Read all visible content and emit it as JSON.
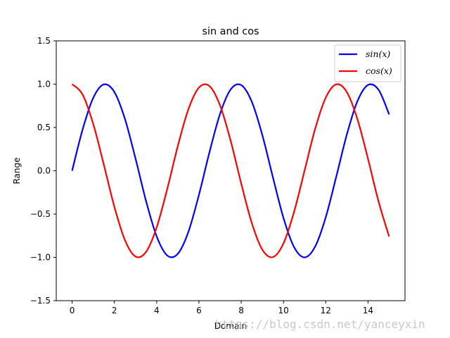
{
  "chart_data": {
    "type": "line",
    "title": "sin and cos",
    "xlabel": "Domain",
    "ylabel": "Range",
    "xlim": [
      -0.75,
      15.75
    ],
    "ylim": [
      -1.5,
      1.5
    ],
    "xticks": [
      0,
      2,
      4,
      6,
      8,
      10,
      12,
      14
    ],
    "yticks": [
      -1.5,
      -1.0,
      -0.5,
      0.0,
      0.5,
      1.0,
      1.5
    ],
    "xtick_labels": [
      "0",
      "2",
      "4",
      "6",
      "8",
      "10",
      "12",
      "14"
    ],
    "ytick_labels": [
      "−1.5",
      "−1.0",
      "−0.5",
      "0.0",
      "0.5",
      "1.0",
      "1.5"
    ],
    "grid": false,
    "legend_position": "top-right",
    "series": [
      {
        "name": "sin(x)",
        "color": "#0000ff",
        "x": [
          0,
          0.5,
          1,
          1.5,
          2,
          2.5,
          3,
          3.5,
          4,
          4.5,
          5,
          5.5,
          6,
          6.5,
          7,
          7.5,
          8,
          8.5,
          9,
          9.5,
          10,
          10.5,
          11,
          11.5,
          12,
          12.5,
          13,
          13.5,
          14,
          14.5,
          15
        ],
        "y": [
          0.0,
          0.479,
          0.841,
          0.997,
          0.909,
          0.598,
          0.141,
          -0.351,
          -0.757,
          -0.978,
          -0.959,
          -0.706,
          -0.279,
          0.215,
          0.657,
          0.938,
          0.989,
          0.798,
          0.412,
          -0.075,
          -0.544,
          -0.88,
          -1.0,
          -0.875,
          -0.537,
          -0.066,
          0.42,
          0.804,
          0.991,
          0.935,
          0.65
        ]
      },
      {
        "name": "cos(x)",
        "color": "#ff0000",
        "x": [
          0,
          0.5,
          1,
          1.5,
          2,
          2.5,
          3,
          3.5,
          4,
          4.5,
          5,
          5.5,
          6,
          6.5,
          7,
          7.5,
          8,
          8.5,
          9,
          9.5,
          10,
          10.5,
          11,
          11.5,
          12,
          12.5,
          13,
          13.5,
          14,
          14.5,
          15
        ],
        "y": [
          1.0,
          0.878,
          0.54,
          0.071,
          -0.416,
          -0.801,
          -0.99,
          -0.936,
          -0.654,
          -0.211,
          0.284,
          0.709,
          0.96,
          0.977,
          0.754,
          0.347,
          -0.146,
          -0.602,
          -0.911,
          -0.997,
          -0.839,
          -0.476,
          0.004,
          0.485,
          0.844,
          0.998,
          0.907,
          0.595,
          0.137,
          -0.356,
          -0.76
        ]
      }
    ]
  },
  "watermark": "https://blog.csdn.net/yanceyxin"
}
